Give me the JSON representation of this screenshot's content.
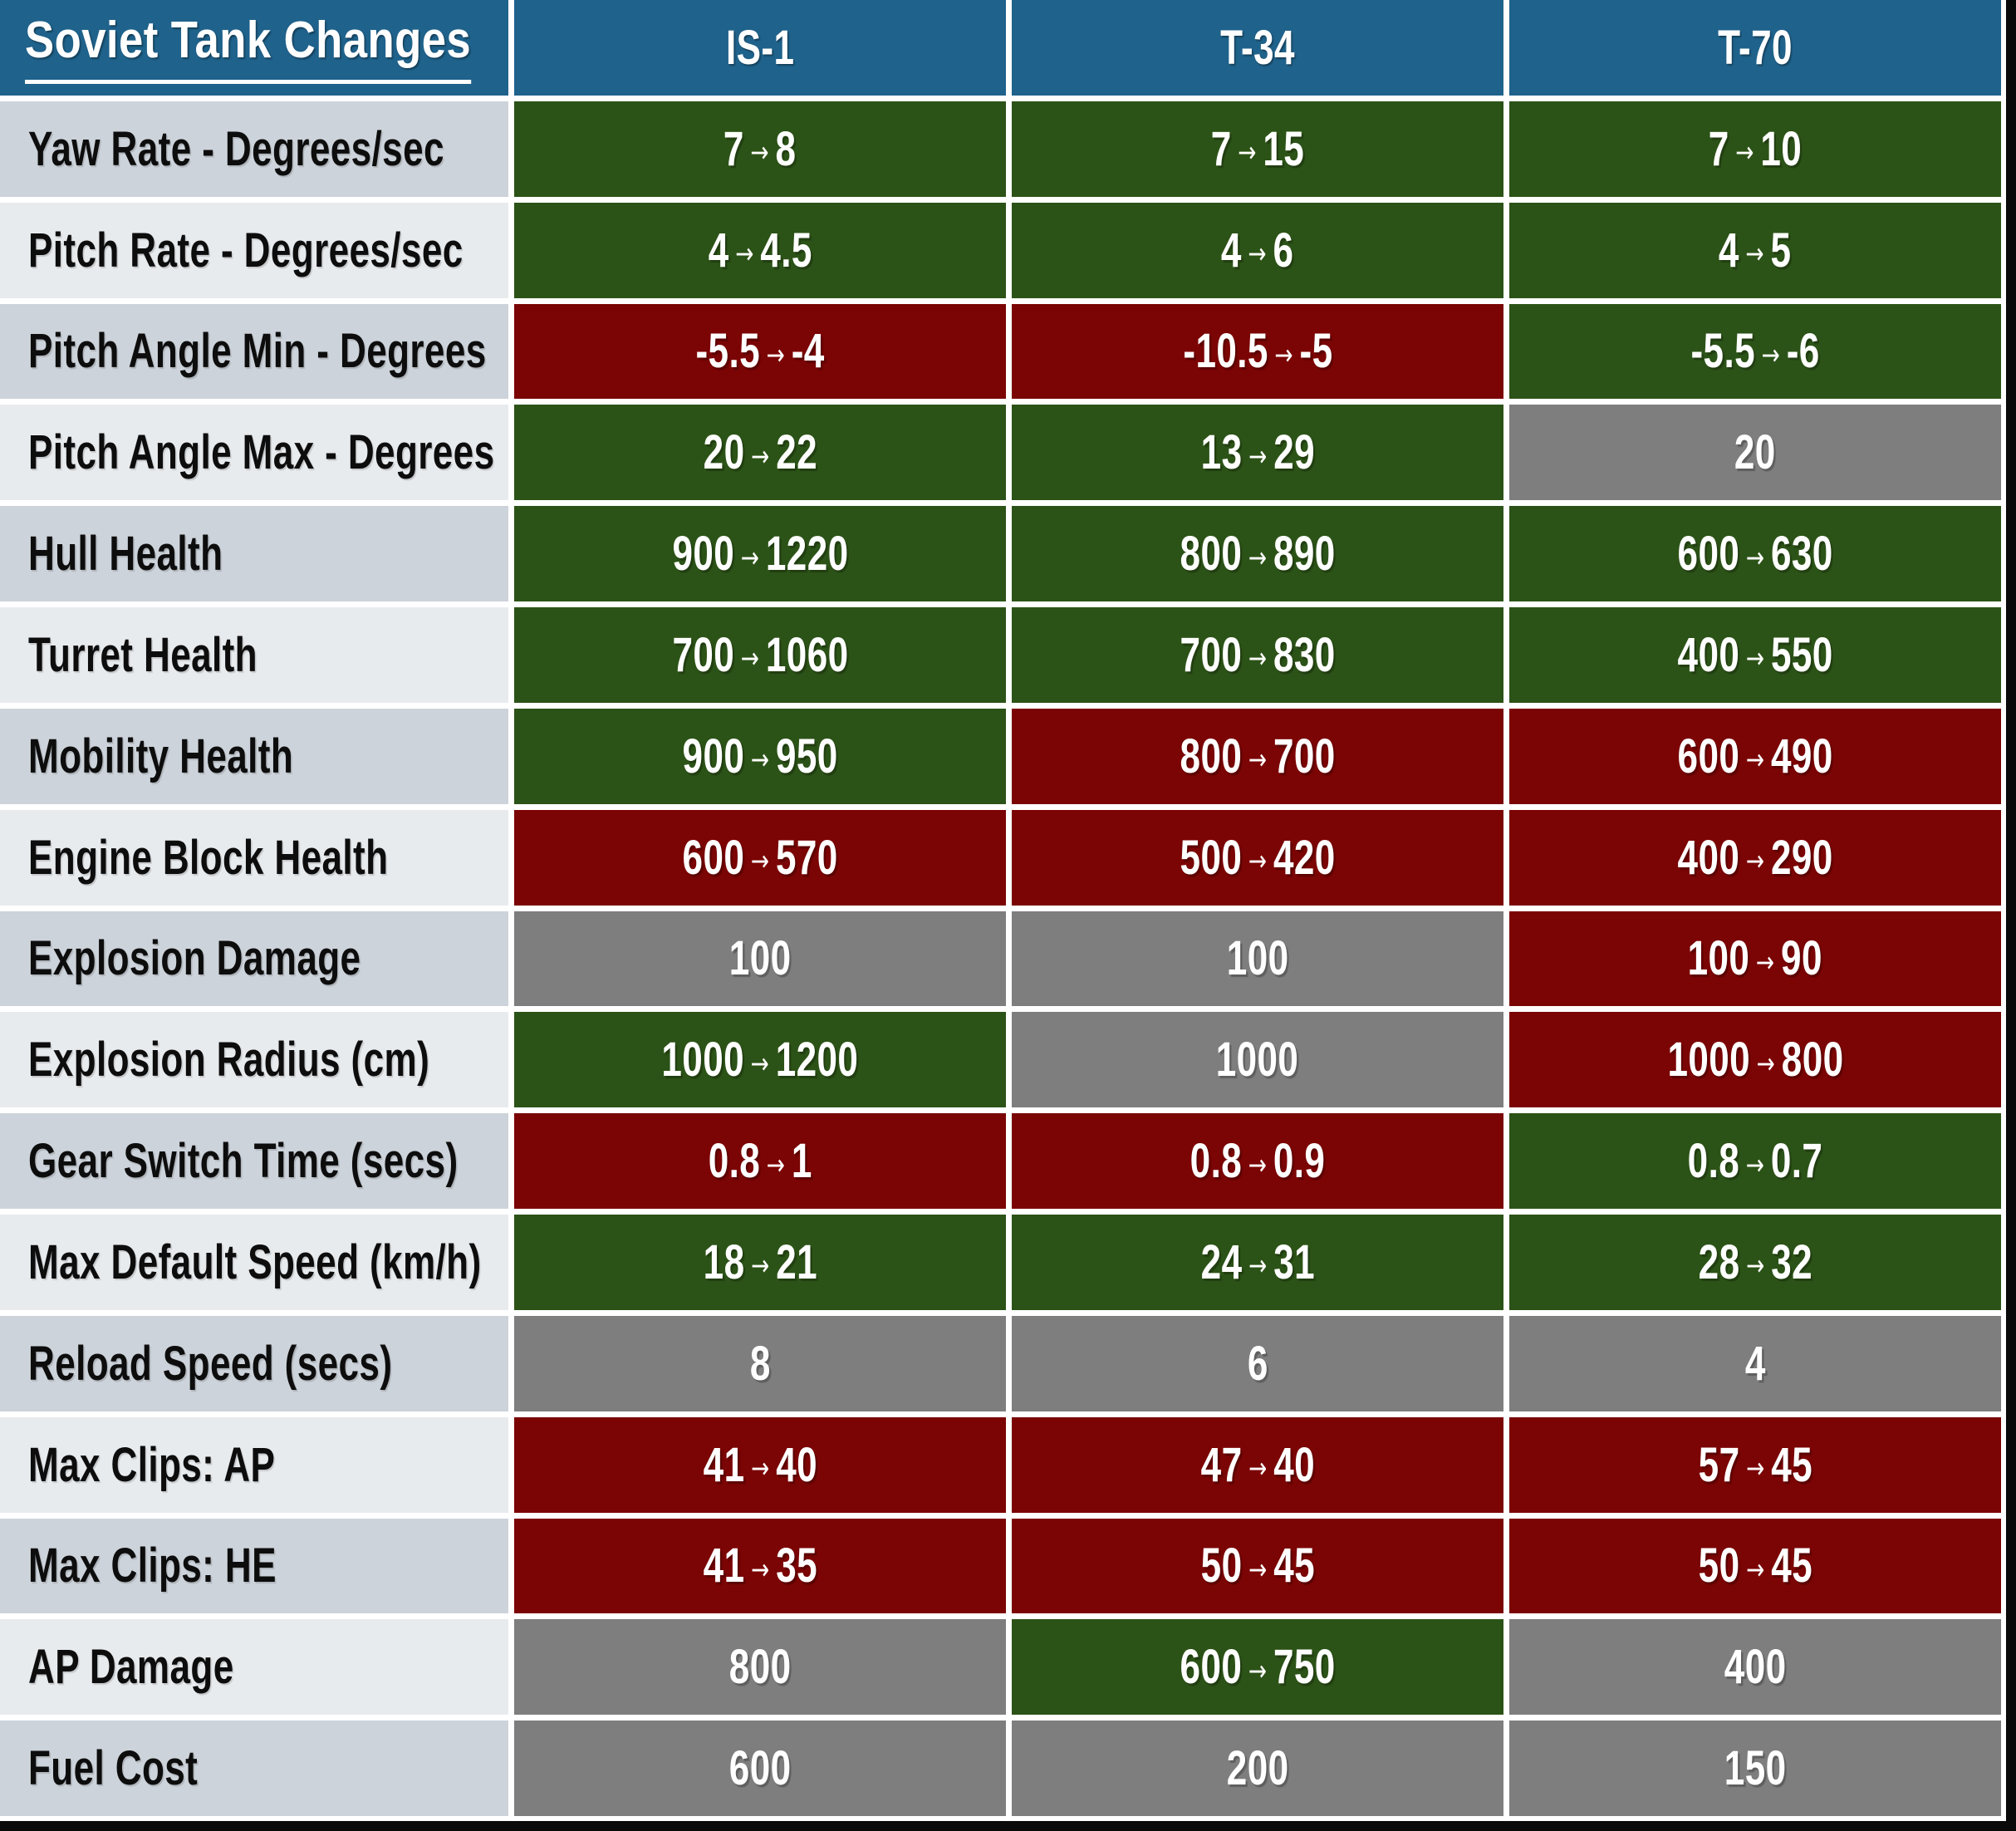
{
  "chart_data": {
    "type": "table",
    "title": "Soviet Tank Changes",
    "columns": [
      "IS-1",
      "T-34",
      "T-70"
    ],
    "rows": [
      {
        "label": "Yaw Rate - Degrees/sec",
        "cells": [
          {
            "text": "7 → 8",
            "status": "buff"
          },
          {
            "text": "7 → 15",
            "status": "buff"
          },
          {
            "text": "7 → 10",
            "status": "buff"
          }
        ]
      },
      {
        "label": "Pitch Rate - Degrees/sec",
        "cells": [
          {
            "text": "4 → 4.5",
            "status": "buff"
          },
          {
            "text": "4 → 6",
            "status": "buff"
          },
          {
            "text": "4 → 5",
            "status": "buff"
          }
        ]
      },
      {
        "label": "Pitch Angle Min - Degrees",
        "cells": [
          {
            "text": "-5.5 → -4",
            "status": "nerf"
          },
          {
            "text": "-10.5 → -5",
            "status": "nerf"
          },
          {
            "text": "-5.5 → -6",
            "status": "buff"
          }
        ]
      },
      {
        "label": "Pitch Angle Max - Degrees",
        "cells": [
          {
            "text": "20 → 22",
            "status": "buff"
          },
          {
            "text": "13 → 29",
            "status": "buff"
          },
          {
            "text": "20",
            "status": "unchanged"
          }
        ]
      },
      {
        "label": "Hull Health",
        "cells": [
          {
            "text": "900 → 1220",
            "status": "buff"
          },
          {
            "text": "800 → 890",
            "status": "buff"
          },
          {
            "text": "600 → 630",
            "status": "buff"
          }
        ]
      },
      {
        "label": "Turret Health",
        "cells": [
          {
            "text": "700 → 1060",
            "status": "buff"
          },
          {
            "text": "700 → 830",
            "status": "buff"
          },
          {
            "text": "400 → 550",
            "status": "buff"
          }
        ]
      },
      {
        "label": "Mobility Health",
        "cells": [
          {
            "text": "900 → 950",
            "status": "buff"
          },
          {
            "text": "800 → 700",
            "status": "nerf"
          },
          {
            "text": "600 → 490",
            "status": "nerf"
          }
        ]
      },
      {
        "label": "Engine Block Health",
        "cells": [
          {
            "text": "600 → 570",
            "status": "nerf"
          },
          {
            "text": "500 → 420",
            "status": "nerf"
          },
          {
            "text": "400 → 290",
            "status": "nerf"
          }
        ]
      },
      {
        "label": "Explosion Damage",
        "cells": [
          {
            "text": "100",
            "status": "unchanged"
          },
          {
            "text": "100",
            "status": "unchanged"
          },
          {
            "text": "100 → 90",
            "status": "nerf"
          }
        ]
      },
      {
        "label": "Explosion Radius (cm)",
        "cells": [
          {
            "text": "1000 → 1200",
            "status": "buff"
          },
          {
            "text": "1000",
            "status": "unchanged"
          },
          {
            "text": "1000 → 800",
            "status": "nerf"
          }
        ]
      },
      {
        "label": "Gear Switch Time (secs)",
        "cells": [
          {
            "text": "0.8 → 1",
            "status": "nerf"
          },
          {
            "text": "0.8 → 0.9",
            "status": "nerf"
          },
          {
            "text": "0.8 → 0.7",
            "status": "buff"
          }
        ]
      },
      {
        "label": "Max Default Speed (km/h)",
        "cells": [
          {
            "text": "18 → 21",
            "status": "buff"
          },
          {
            "text": "24 → 31",
            "status": "buff"
          },
          {
            "text": "28 → 32",
            "status": "buff"
          }
        ]
      },
      {
        "label": "Reload Speed (secs)",
        "cells": [
          {
            "text": "8",
            "status": "unchanged"
          },
          {
            "text": "6",
            "status": "unchanged"
          },
          {
            "text": "4",
            "status": "unchanged"
          }
        ]
      },
      {
        "label": "Max Clips: AP",
        "cells": [
          {
            "text": "41 → 40",
            "status": "nerf"
          },
          {
            "text": "47 → 40",
            "status": "nerf"
          },
          {
            "text": "57 → 45",
            "status": "nerf"
          }
        ]
      },
      {
        "label": "Max Clips: HE",
        "cells": [
          {
            "text": "41 → 35",
            "status": "nerf"
          },
          {
            "text": "50 → 45",
            "status": "nerf"
          },
          {
            "text": "50 → 45",
            "status": "nerf"
          }
        ]
      },
      {
        "label": "AP Damage",
        "cells": [
          {
            "text": "800",
            "status": "unchanged"
          },
          {
            "text": "600 → 750",
            "status": "buff"
          },
          {
            "text": "400",
            "status": "unchanged"
          }
        ]
      },
      {
        "label": "Fuel Cost",
        "cells": [
          {
            "text": "600",
            "status": "unchanged"
          },
          {
            "text": "200",
            "status": "unchanged"
          },
          {
            "text": "150",
            "status": "unchanged"
          }
        ]
      }
    ],
    "layout": {
      "grid": "on",
      "header_position": "top",
      "label_column_position": "left"
    },
    "colors": {
      "buff": "#2C5317",
      "nerf": "#7B0404",
      "unchanged": "#7E7E7E",
      "header_bg": "#1F628B",
      "header_text": "#FFFFFF",
      "label_band_dark": "#CDD3DA",
      "label_band_light": "#E8EBEE",
      "value_text": "#FFFFFF",
      "gridline": "#FFFFFF",
      "edge_bar": "#0A0A0A"
    }
  }
}
